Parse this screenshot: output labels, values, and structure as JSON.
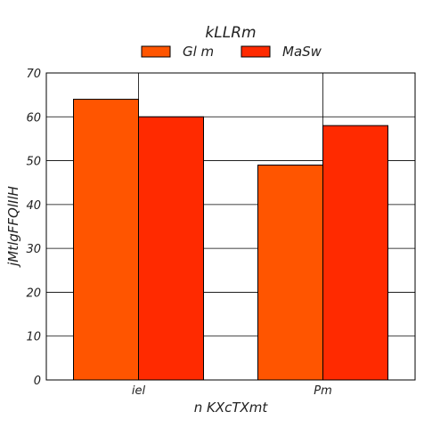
{
  "chart_data": {
    "type": "bar",
    "categories": [
      "iel",
      "Pm"
    ],
    "series": [
      {
        "name": "Gl m",
        "values": [
          64,
          49
        ],
        "color": "#ff5500"
      },
      {
        "name": "MaSw",
        "values": [
          60,
          58
        ],
        "color": "#ff2a00"
      }
    ],
    "legend_title": "kLLRm",
    "xlabel": "n  KXcTXmt",
    "ylabel": "jMtlgFFQlIlH",
    "ylim": [
      0,
      70
    ],
    "yticks": [
      0,
      10,
      20,
      30,
      40,
      50,
      60,
      70
    ],
    "grid": true,
    "legend_position": "top"
  }
}
